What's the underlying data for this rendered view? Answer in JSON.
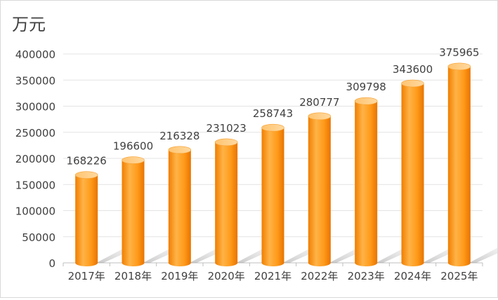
{
  "chart_data": {
    "type": "bar",
    "unit_label": "万元",
    "categories": [
      "2017年",
      "2018年",
      "2019年",
      "2020年",
      "2021年",
      "2022年",
      "2023年",
      "2024年",
      "2025年"
    ],
    "values": [
      168226,
      196600,
      216328,
      231023,
      258743,
      280777,
      309798,
      343600,
      375965
    ],
    "data_labels": [
      "168226",
      "196600",
      "216328",
      "231023",
      "258743",
      "280777",
      "309798",
      "343600",
      "375965"
    ],
    "y_ticks": [
      0,
      50000,
      100000,
      150000,
      200000,
      250000,
      300000,
      350000,
      400000
    ],
    "ylim": [
      0,
      400000
    ],
    "grid": true,
    "bar_color": "#FF9A1A",
    "bar_style": "3d-cylinder"
  }
}
